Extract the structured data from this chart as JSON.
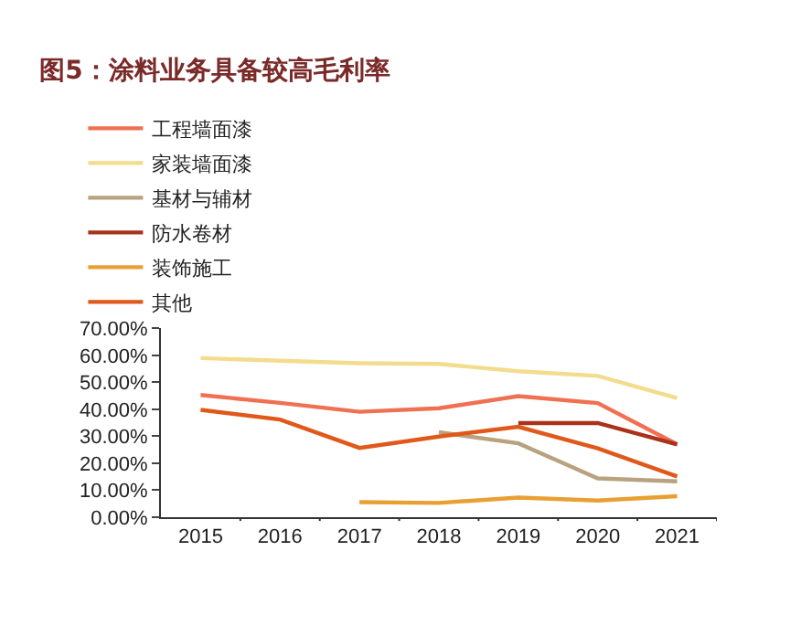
{
  "chart_data": {
    "type": "line",
    "title": "图5：涂料业务具备较高毛利率",
    "categories": [
      "2015",
      "2016",
      "2017",
      "2018",
      "2019",
      "2020",
      "2021"
    ],
    "series": [
      {
        "name": "工程墙面漆",
        "color": "#f07052",
        "values": [
          45.3,
          42.4,
          39.1,
          40.4,
          44.9,
          42.3,
          27.0
        ]
      },
      {
        "name": "家装墙面漆",
        "color": "#f3dc8e",
        "values": [
          59.0,
          58.0,
          57.1,
          56.8,
          54.1,
          52.4,
          44.2
        ]
      },
      {
        "name": "基材与辅材",
        "color": "#b8a27f",
        "values": [
          null,
          null,
          null,
          31.5,
          27.4,
          14.4,
          13.3
        ]
      },
      {
        "name": "防水卷材",
        "color": "#a9321b",
        "values": [
          null,
          null,
          null,
          null,
          34.9,
          34.9,
          27.0
        ]
      },
      {
        "name": "装饰施工",
        "color": "#e8a033",
        "values": [
          null,
          null,
          5.6,
          5.3,
          7.3,
          6.2,
          7.8
        ]
      },
      {
        "name": "其他",
        "color": "#e0581a",
        "values": [
          39.8,
          36.2,
          25.7,
          29.9,
          33.5,
          25.5,
          15.1
        ]
      }
    ],
    "ylim": [
      0,
      70
    ],
    "yticks": [
      {
        "value": 0,
        "label": "0.00%"
      },
      {
        "value": 10,
        "label": "10.00%"
      },
      {
        "value": 20,
        "label": "20.00%"
      },
      {
        "value": 30,
        "label": "30.00%"
      },
      {
        "value": 40,
        "label": "40.00%"
      },
      {
        "value": 50,
        "label": "50.00%"
      },
      {
        "value": 60,
        "label": "60.00%"
      },
      {
        "value": 70,
        "label": "70.00%"
      }
    ],
    "grid": false,
    "legend": "top",
    "marker": "none",
    "line_style": "solid"
  }
}
